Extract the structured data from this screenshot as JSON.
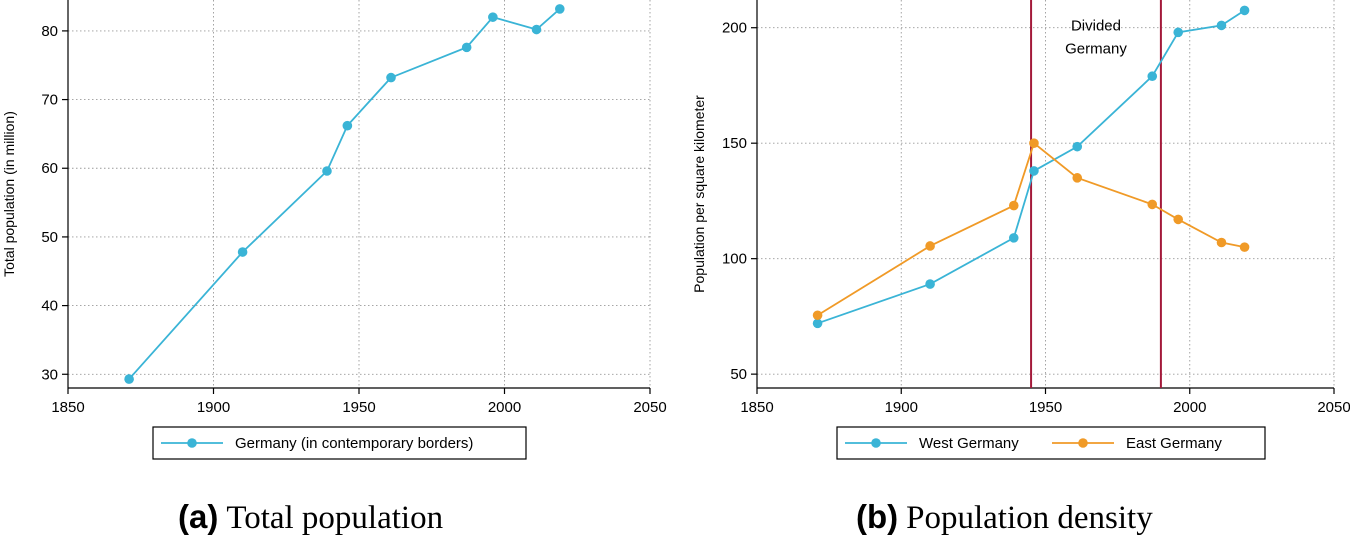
{
  "colors": {
    "west": "#3ab4d6",
    "east": "#f09a27",
    "vline": "#a3193a"
  },
  "chart_data": [
    {
      "type": "line",
      "title": "Total population",
      "panel_label": "(a)",
      "xlabel": "",
      "ylabel": "Total population (in million)",
      "xlim": [
        1850,
        2050
      ],
      "ylim": [
        28,
        84.5
      ],
      "xticks": [
        1850,
        1900,
        1950,
        2000,
        2050
      ],
      "yticks": [
        30,
        40,
        50,
        60,
        70,
        80
      ],
      "legend_position": "bottom",
      "series": [
        {
          "name": "Germany (in contemporary borders)",
          "color_key": "west",
          "x": [
            1871,
            1910,
            1939,
            1946,
            1961,
            1987,
            1996,
            2011,
            2019
          ],
          "y": [
            29.3,
            47.8,
            59.6,
            66.2,
            73.2,
            77.6,
            82.0,
            80.2,
            83.2
          ]
        }
      ]
    },
    {
      "type": "line",
      "title": "Population density",
      "panel_label": "(b)",
      "xlabel": "",
      "ylabel": "Population per square kilometer",
      "xlim": [
        1850,
        2050
      ],
      "ylim": [
        44,
        212
      ],
      "xticks": [
        1850,
        1900,
        1950,
        2000,
        2050
      ],
      "yticks": [
        50,
        100,
        150,
        200
      ],
      "legend_position": "bottom",
      "vlines": [
        1945,
        1990
      ],
      "annotation": {
        "lines": [
          "Divided",
          "Germany"
        ],
        "x": 1967.5,
        "y": [
          201,
          191
        ]
      },
      "series": [
        {
          "name": "West Germany",
          "color_key": "west",
          "x": [
            1871,
            1910,
            1939,
            1946,
            1961,
            1987,
            1996,
            2011,
            2019
          ],
          "y": [
            72,
            89,
            109,
            138,
            148.5,
            179,
            198,
            201,
            207.5
          ]
        },
        {
          "name": "East Germany",
          "color_key": "east",
          "x": [
            1871,
            1910,
            1939,
            1946,
            1961,
            1987,
            1996,
            2011,
            2019
          ],
          "y": [
            75.5,
            105.5,
            123,
            150,
            135,
            123.5,
            117,
            107,
            105
          ]
        }
      ]
    }
  ]
}
